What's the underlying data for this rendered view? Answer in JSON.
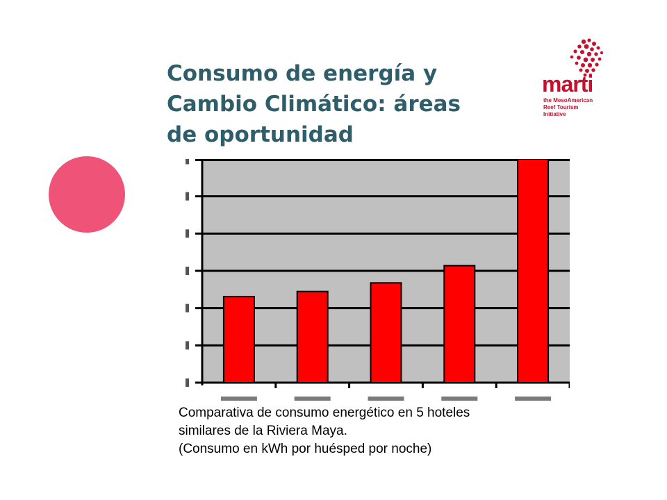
{
  "title": {
    "lines": [
      "Consumo de energía y",
      "Cambio Climático: áreas",
      "de oportunidad"
    ]
  },
  "logo": {
    "word": "marti",
    "tagline": [
      "the MesoAmerican",
      "Reef Tourism",
      "Initiative"
    ],
    "color": "#c8102e"
  },
  "decoration": {
    "dot_color": "#ef5378"
  },
  "caption": {
    "lines": [
      "Comparativa de consumo energético en 5 hoteles",
      "similares de la Riviera Maya.",
      "(Consumo en kWh por huésped por noche)"
    ]
  },
  "chart_data": {
    "type": "bar",
    "title": "",
    "xlabel": "",
    "ylabel": "",
    "categories": [
      "",
      "",
      "",
      "",
      ""
    ],
    "values": [
      2.5,
      2.65,
      2.9,
      3.4,
      6.5
    ],
    "ylim": [
      0,
      6.5
    ],
    "grid": true,
    "bar_color": "#ff0000",
    "plot_background": "#c0c0c0",
    "legend": "none"
  }
}
